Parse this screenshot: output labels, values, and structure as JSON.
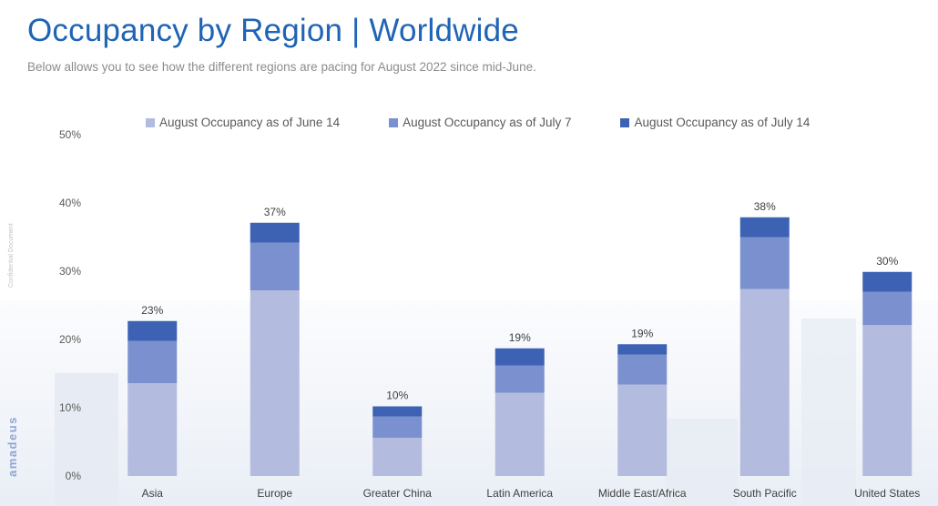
{
  "header": {
    "title": "Occupancy by Region | Worldwide",
    "subtitle": "Below allows you to see how the different regions are pacing for August 2022 since mid-June."
  },
  "side_note": "Confidential Document",
  "brand": "amadeus",
  "colors": {
    "june14": "#b3bcdf",
    "july7": "#7b91cf",
    "july14": "#3d62b4",
    "title": "#1f64b5"
  },
  "chart_data": {
    "type": "bar",
    "stacked": true,
    "categories": [
      "Asia",
      "Europe",
      "Greater China",
      "Latin America",
      "Middle East/Africa",
      "South Pacific",
      "United States"
    ],
    "series": [
      {
        "name": "August Occupancy as of June 14",
        "values": [
          13.6,
          27.2,
          5.6,
          12.2,
          13.4,
          27.4,
          22.1
        ]
      },
      {
        "name": "August Occupancy as of July 7",
        "values": [
          6.2,
          7.0,
          3.1,
          4.0,
          4.4,
          7.6,
          4.9
        ]
      },
      {
        "name": "August Occupancy as of July 14",
        "values": [
          2.9,
          2.9,
          1.5,
          2.5,
          1.5,
          2.9,
          2.9
        ]
      }
    ],
    "totals": [
      "23%",
      "37%",
      "10%",
      "19%",
      "19%",
      "38%",
      "30%"
    ],
    "yticks": [
      "0%",
      "10%",
      "20%",
      "30%",
      "40%",
      "50%"
    ],
    "ylim": [
      0,
      50
    ],
    "grid": false,
    "legend": "top"
  }
}
